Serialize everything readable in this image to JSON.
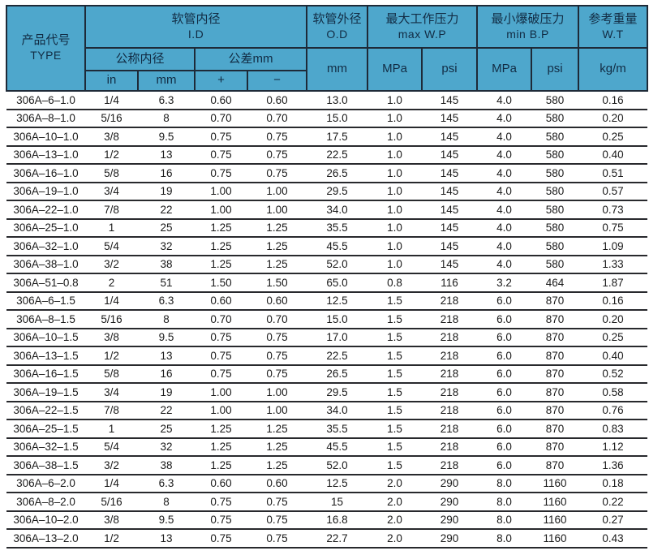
{
  "table": {
    "header": {
      "product_code": {
        "zh": "产品代号",
        "en": "TYPE"
      },
      "inner_diameter": {
        "zh": "软管内径",
        "en": "I.D"
      },
      "outer_diameter": {
        "zh": "软管外径",
        "en": "O.D"
      },
      "max_working_pressure": {
        "zh": "最大工作压力",
        "en": "max W.P"
      },
      "min_burst_pressure": {
        "zh": "最小爆破压力",
        "en": "min B.P"
      },
      "reference_weight": {
        "zh": "参考重量",
        "en": "W.T"
      },
      "nominal_id": "公称内径",
      "tolerance": "公差mm",
      "units": {
        "id_in": "in",
        "id_mm": "mm",
        "tol_plus": "+",
        "tol_minus": "−",
        "od_mm": "mm",
        "max_wp_mpa": "MPa",
        "max_wp_psi": "psi",
        "min_bp_mpa": "MPa",
        "min_bp_psi": "psi",
        "wt_kgm": "kg/m"
      }
    },
    "column_keys": [
      "type",
      "id-in",
      "id-mm",
      "tol-plus",
      "tol-minus",
      "od-mm",
      "max-wp-mpa",
      "max-wp-psi",
      "min-bp-mpa",
      "min-bp-psi",
      "wt-kgm"
    ],
    "colors": {
      "header_bg": "#4ea7cc",
      "header_text": "#122c44",
      "grid_line": "#28292d",
      "body_text": "#1a1a1a"
    }
  },
  "rows": [
    [
      "306A–6–1.0",
      "1/4",
      "6.3",
      "0.60",
      "0.60",
      "13.0",
      "1.0",
      "145",
      "4.0",
      "580",
      "0.16"
    ],
    [
      "306A–8–1.0",
      "5/16",
      "8",
      "0.70",
      "0.70",
      "15.0",
      "1.0",
      "145",
      "4.0",
      "580",
      "0.20"
    ],
    [
      "306A–10–1.0",
      "3/8",
      "9.5",
      "0.75",
      "0.75",
      "17.5",
      "1.0",
      "145",
      "4.0",
      "580",
      "0.25"
    ],
    [
      "306A–13–1.0",
      "1/2",
      "13",
      "0.75",
      "0.75",
      "22.5",
      "1.0",
      "145",
      "4.0",
      "580",
      "0.40"
    ],
    [
      "306A–16–1.0",
      "5/8",
      "16",
      "0.75",
      "0.75",
      "26.5",
      "1.0",
      "145",
      "4.0",
      "580",
      "0.51"
    ],
    [
      "306A–19–1.0",
      "3/4",
      "19",
      "1.00",
      "1.00",
      "29.5",
      "1.0",
      "145",
      "4.0",
      "580",
      "0.57"
    ],
    [
      "306A–22–1.0",
      "7/8",
      "22",
      "1.00",
      "1.00",
      "34.0",
      "1.0",
      "145",
      "4.0",
      "580",
      "0.73"
    ],
    [
      "306A–25–1.0",
      "1",
      "25",
      "1.25",
      "1.25",
      "35.5",
      "1.0",
      "145",
      "4.0",
      "580",
      "0.75"
    ],
    [
      "306A–32–1.0",
      "5/4",
      "32",
      "1.25",
      "1.25",
      "45.5",
      "1.0",
      "145",
      "4.0",
      "580",
      "1.09"
    ],
    [
      "306A–38–1.0",
      "3/2",
      "38",
      "1.25",
      "1.25",
      "52.0",
      "1.0",
      "145",
      "4.0",
      "580",
      "1.33"
    ],
    [
      "306A–51–0.8",
      "2",
      "51",
      "1.50",
      "1.50",
      "65.0",
      "0.8",
      "116",
      "3.2",
      "464",
      "1.87"
    ],
    [
      "306A–6–1.5",
      "1/4",
      "6.3",
      "0.60",
      "0.60",
      "12.5",
      "1.5",
      "218",
      "6.0",
      "870",
      "0.16"
    ],
    [
      "306A–8–1.5",
      "5/16",
      "8",
      "0.70",
      "0.70",
      "15.0",
      "1.5",
      "218",
      "6.0",
      "870",
      "0.20"
    ],
    [
      "306A–10–1.5",
      "3/8",
      "9.5",
      "0.75",
      "0.75",
      "17.0",
      "1.5",
      "218",
      "6.0",
      "870",
      "0.25"
    ],
    [
      "306A–13–1.5",
      "1/2",
      "13",
      "0.75",
      "0.75",
      "22.5",
      "1.5",
      "218",
      "6.0",
      "870",
      "0.40"
    ],
    [
      "306A–16–1.5",
      "5/8",
      "16",
      "0.75",
      "0.75",
      "26.5",
      "1.5",
      "218",
      "6.0",
      "870",
      "0.52"
    ],
    [
      "306A–19–1.5",
      "3/4",
      "19",
      "1.00",
      "1.00",
      "29.5",
      "1.5",
      "218",
      "6.0",
      "870",
      "0.58"
    ],
    [
      "306A–22–1.5",
      "7/8",
      "22",
      "1.00",
      "1.00",
      "34.0",
      "1.5",
      "218",
      "6.0",
      "870",
      "0.76"
    ],
    [
      "306A–25–1.5",
      "1",
      "25",
      "1.25",
      "1.25",
      "35.5",
      "1.5",
      "218",
      "6.0",
      "870",
      "0.83"
    ],
    [
      "306A–32–1.5",
      "5/4",
      "32",
      "1.25",
      "1.25",
      "45.5",
      "1.5",
      "218",
      "6.0",
      "870",
      "1.12"
    ],
    [
      "306A–38–1.5",
      "3/2",
      "38",
      "1.25",
      "1.25",
      "52.0",
      "1.5",
      "218",
      "6.0",
      "870",
      "1.36"
    ],
    [
      "306A–6–2.0",
      "1/4",
      "6.3",
      "0.60",
      "0.60",
      "12.5",
      "2.0",
      "290",
      "8.0",
      "1160",
      "0.18"
    ],
    [
      "306A–8–2.0",
      "5/16",
      "8",
      "0.75",
      "0.75",
      "15",
      "2.0",
      "290",
      "8.0",
      "1160",
      "0.22"
    ],
    [
      "306A–10–2.0",
      "3/8",
      "9.5",
      "0.75",
      "0.75",
      "16.8",
      "2.0",
      "290",
      "8.0",
      "1160",
      "0.27"
    ],
    [
      "306A–13–2.0",
      "1/2",
      "13",
      "0.75",
      "0.75",
      "22.7",
      "2.0",
      "290",
      "8.0",
      "1160",
      "0.43"
    ]
  ]
}
